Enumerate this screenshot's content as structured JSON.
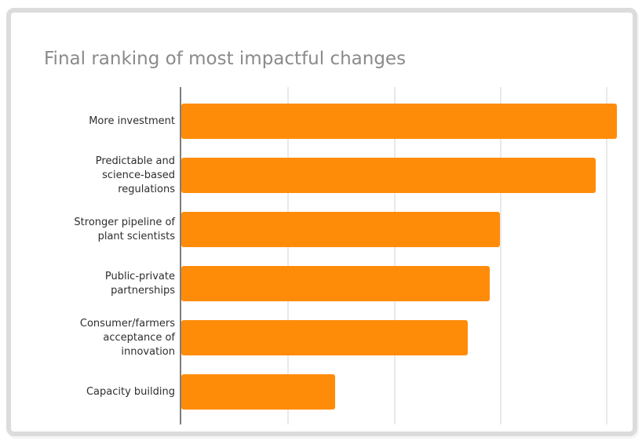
{
  "page": {
    "background": "#ffffff"
  },
  "card": {
    "border_color": "#dcdcdc",
    "background": "#ffffff"
  },
  "chart_data": {
    "type": "bar",
    "orientation": "horizontal",
    "title": "Final ranking of most impactful changes",
    "categories": [
      "More investment",
      "Predictable and science-based regulations",
      "Stronger pipeline of plant scientists",
      "Public-private partnerships",
      "Consumer/farmers acceptance of innovation",
      "Capacity building"
    ],
    "category_lines": [
      [
        "More investment"
      ],
      [
        "Predictable and",
        "science-based",
        "regulations"
      ],
      [
        "Stronger pipeline of",
        "plant scientists"
      ],
      [
        "Public-private",
        "partnerships"
      ],
      [
        "Consumer/farmers",
        "acceptance of",
        "innovation"
      ],
      [
        "Capacity building"
      ]
    ],
    "values": [
      4.1,
      3.9,
      3.0,
      2.9,
      2.7,
      1.45
    ],
    "xlabel": "",
    "ylabel": "",
    "xlim": [
      0,
      4.27
    ],
    "grid_step": 1,
    "grid": true,
    "tick_labels_shown": false,
    "value_labels_shown": false,
    "legend": "none",
    "bar_color": "#ff8c09",
    "gridline_color": "#e9e9e9",
    "axis_line_color": "#7d7d7d",
    "title_color": "#8a8a8a",
    "label_color": "#2e2e2e"
  }
}
